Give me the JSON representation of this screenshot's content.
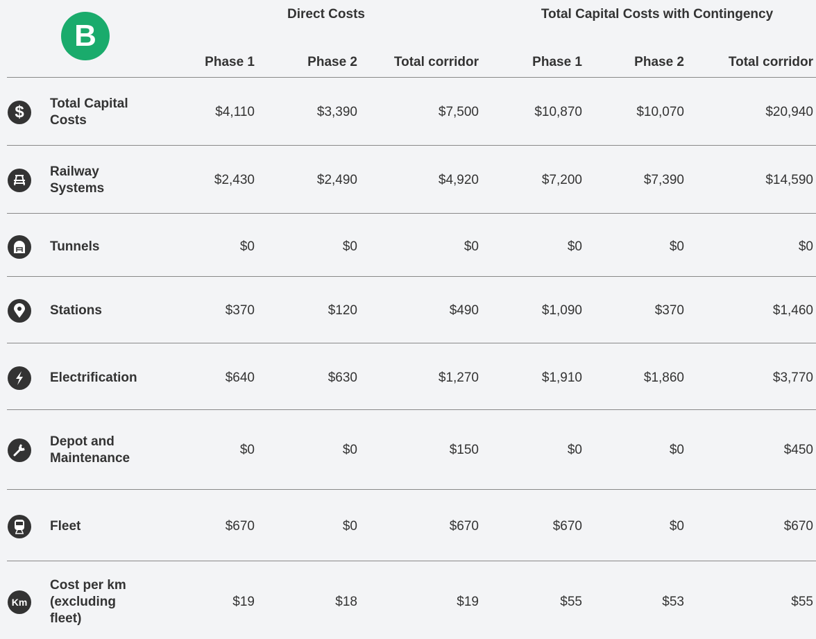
{
  "badge": "B",
  "groups": [
    "Direct Costs",
    "Total Capital Costs with Contingency"
  ],
  "columns": [
    "Phase 1",
    "Phase 2",
    "Total corridor",
    "Phase 1",
    "Phase 2",
    "Total corridor"
  ],
  "rows": [
    {
      "icon_text": "$",
      "label": [
        "Total Capital",
        "Costs"
      ],
      "cells": [
        "$4,110",
        "$3,390",
        "$7,500",
        "$10,870",
        "$10,070",
        "$20,940"
      ]
    },
    {
      "label": [
        "Railway",
        "Systems"
      ],
      "cells": [
        "$2,430",
        "$2,490",
        "$4,920",
        "$7,200",
        "$7,390",
        "$14,590"
      ]
    },
    {
      "label": [
        "Tunnels"
      ],
      "cells": [
        "$0",
        "$0",
        "$0",
        "$0",
        "$0",
        "$0"
      ]
    },
    {
      "label": [
        "Stations"
      ],
      "cells": [
        "$370",
        "$120",
        "$490",
        "$1,090",
        "$370",
        "$1,460"
      ]
    },
    {
      "label": [
        "Electrification"
      ],
      "cells": [
        "$640",
        "$630",
        "$1,270",
        "$1,910",
        "$1,860",
        "$3,770"
      ]
    },
    {
      "label": [
        "Depot and",
        "Maintenance"
      ],
      "cells": [
        "$0",
        "$0",
        "$150",
        "$0",
        "$0",
        "$450"
      ]
    },
    {
      "label": [
        "Fleet"
      ],
      "cells": [
        "$670",
        "$0",
        "$670",
        "$670",
        "$0",
        "$670"
      ]
    },
    {
      "icon_text": "Km",
      "label": [
        "Cost per km",
        "(excluding",
        "fleet)"
      ],
      "cells": [
        "$19",
        "$18",
        "$19",
        "$55",
        "$53",
        "$55"
      ]
    }
  ]
}
